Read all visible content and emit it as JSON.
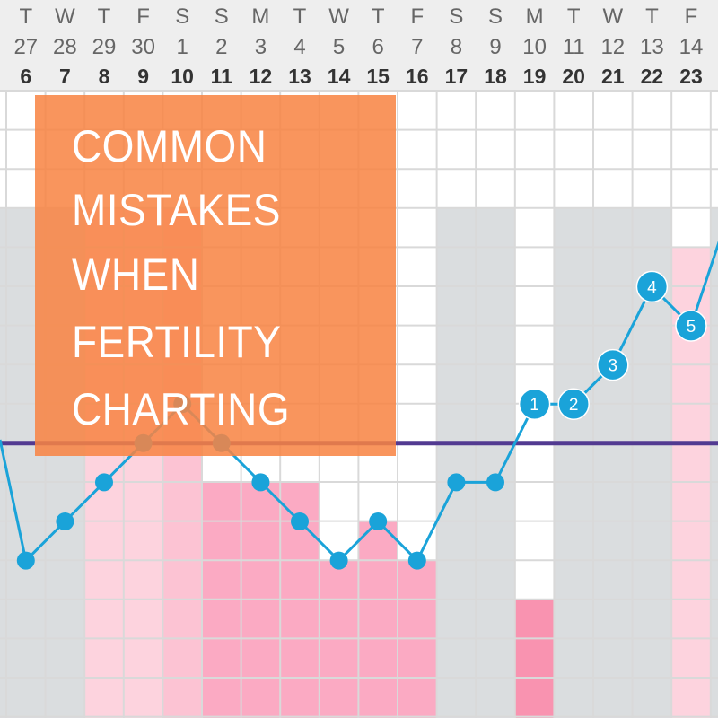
{
  "overlay": {
    "title_lines": [
      "COMMON",
      "MISTAKES",
      "WHEN",
      "FERTILITY",
      "CHARTING"
    ],
    "color": "#f88442"
  },
  "chart_data": {
    "type": "line",
    "header_weekdays": [
      "T",
      "W",
      "T",
      "F",
      "S",
      "S",
      "M",
      "T",
      "W",
      "T",
      "F",
      "S",
      "S",
      "M",
      "T",
      "W",
      "T",
      "F"
    ],
    "header_dates": [
      "27",
      "28",
      "29",
      "30",
      "1",
      "2",
      "3",
      "4",
      "5",
      "6",
      "7",
      "8",
      "9",
      "10",
      "11",
      "12",
      "13",
      "14"
    ],
    "cycle_days": [
      "6",
      "7",
      "8",
      "9",
      "10",
      "11",
      "12",
      "13",
      "14",
      "15",
      "16",
      "17",
      "18",
      "19",
      "20",
      "21",
      "22",
      "23"
    ],
    "temp_levels": [
      4,
      5,
      6,
      7,
      8,
      7,
      6,
      5,
      4,
      5,
      4,
      6,
      6,
      8,
      8,
      9,
      11,
      10
    ],
    "next_temp_level": 13,
    "post_ovulation_labels": [
      "",
      "",
      "",
      "",
      "",
      "",
      "",
      "",
      "",
      "",
      "",
      "",
      "",
      "1",
      "2",
      "3",
      "4",
      "5"
    ],
    "coverline_level": 7,
    "column_fill": [
      "grey",
      "grey",
      "light-pink",
      "light-pink",
      "pink",
      "medium-pink",
      "medium-pink",
      "medium-pink",
      "medium-pink",
      "medium-pink",
      "medium-pink",
      "grey",
      "grey",
      "dark-pink",
      "grey",
      "grey",
      "grey",
      "light-pink"
    ],
    "fill_level": [
      13,
      13,
      13,
      13,
      13,
      6,
      6,
      6,
      4,
      5,
      4,
      13,
      13,
      3,
      13,
      13,
      13,
      12
    ],
    "colors": {
      "line": "#1aa3d9",
      "coverline": "#523a91",
      "grey": "#dadddf",
      "light-pink": "#fdd3de",
      "pink": "#fcc3d3",
      "medium-pink": "#fbaac3",
      "dark-pink": "#f993b0",
      "header_bg": "#eeeeee",
      "grid": "#d9d9d9"
    }
  }
}
